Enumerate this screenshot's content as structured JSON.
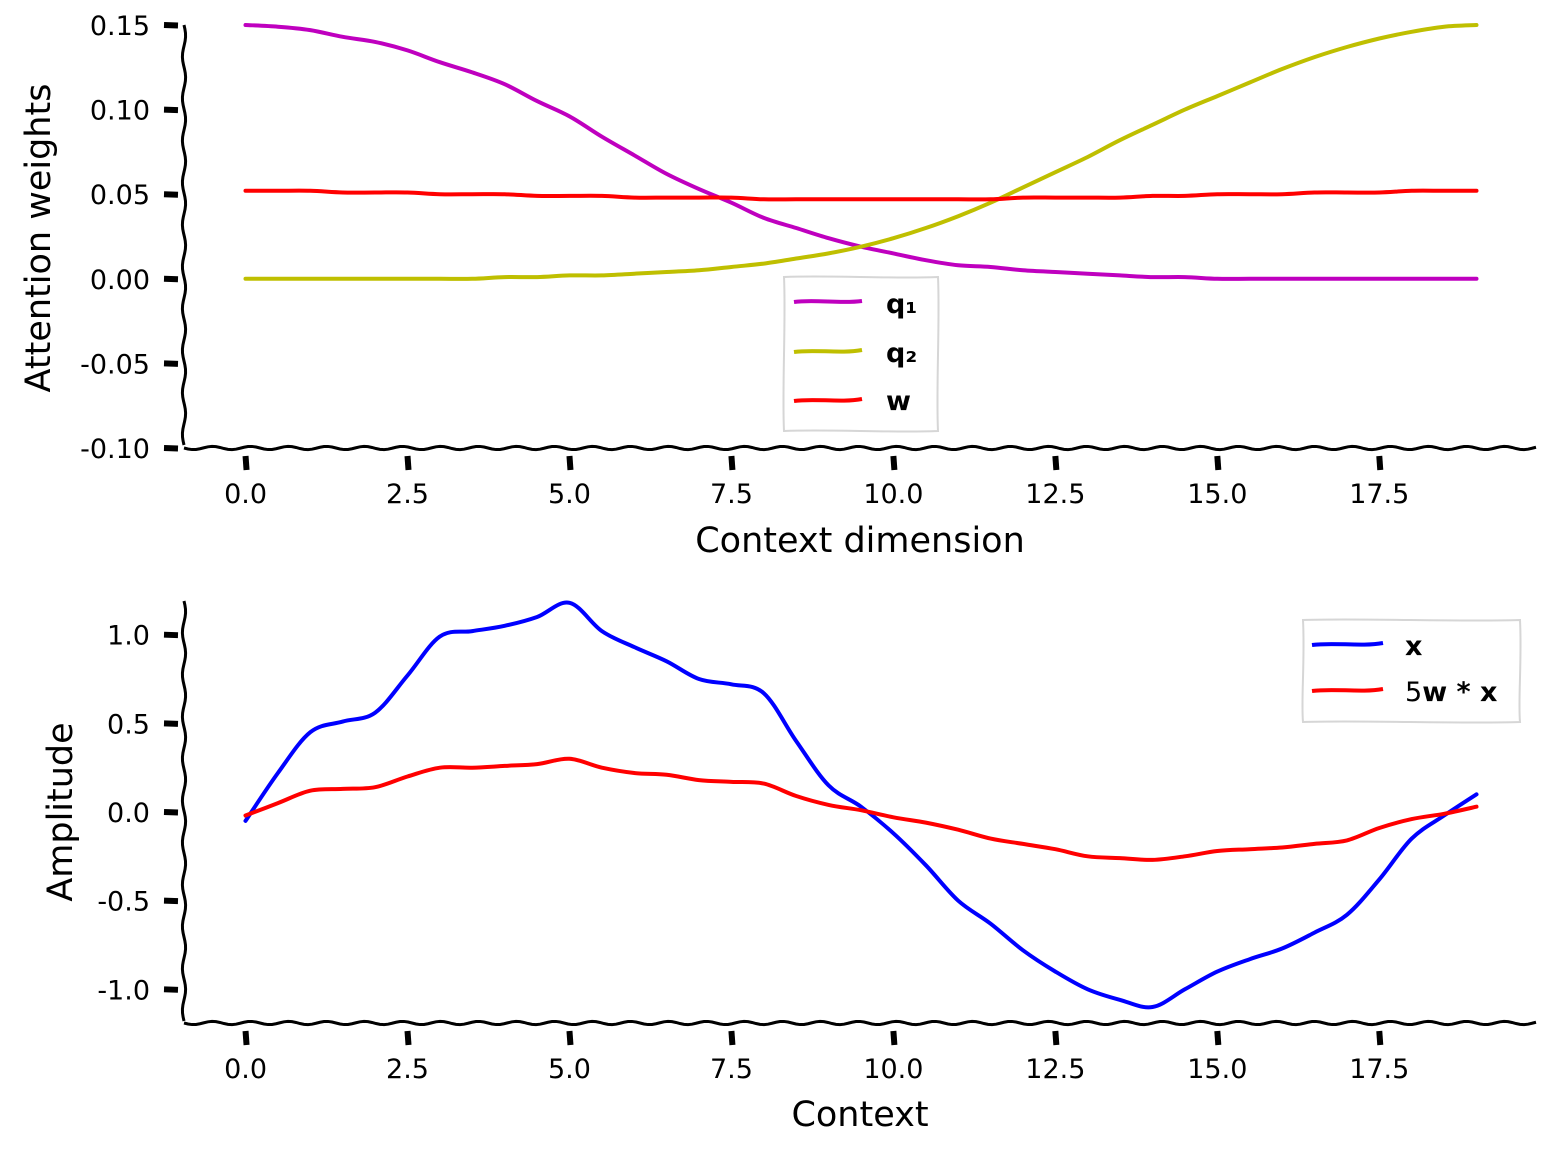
{
  "chart_data": [
    {
      "type": "line",
      "xlabel": "Context dimension",
      "ylabel": "Attention weights",
      "xlim": [
        -0.95,
        19.95
      ],
      "ylim": [
        -0.1,
        0.15
      ],
      "xticks": [
        0.0,
        2.5,
        5.0,
        7.5,
        10.0,
        12.5,
        15.0,
        17.5
      ],
      "xtick_labels": [
        "0.0",
        "2.5",
        "5.0",
        "7.5",
        "10.0",
        "12.5",
        "15.0",
        "17.5"
      ],
      "yticks": [
        0.15,
        0.1,
        0.05,
        0.0,
        -0.05,
        -0.1
      ],
      "ytick_labels": [
        "0.15",
        "0.10",
        "0.05",
        "0.00",
        "-0.05",
        "-0.10"
      ],
      "legend_position": "lower-center",
      "x": [
        0,
        0.5,
        1,
        1.5,
        2,
        2.5,
        3,
        3.5,
        4,
        4.5,
        5,
        5.5,
        6,
        6.5,
        7,
        7.5,
        8,
        8.5,
        9,
        9.5,
        10,
        10.5,
        11,
        11.5,
        12,
        12.5,
        13,
        13.5,
        14,
        14.5,
        15,
        15.5,
        16,
        16.5,
        17,
        17.5,
        18,
        18.5,
        19
      ],
      "series": [
        {
          "name": "q₁",
          "color": "#bf00bf",
          "values": [
            0.15,
            0.149,
            0.147,
            0.143,
            0.14,
            0.135,
            0.128,
            0.122,
            0.115,
            0.105,
            0.096,
            0.084,
            0.073,
            0.062,
            0.053,
            0.045,
            0.036,
            0.03,
            0.024,
            0.019,
            0.015,
            0.011,
            0.008,
            0.007,
            0.005,
            0.004,
            0.003,
            0.002,
            0.001,
            0.001,
            0.0,
            0.0,
            0.0,
            0.0,
            0.0,
            0.0,
            0.0,
            0.0,
            0.0
          ]
        },
        {
          "name": "q₂",
          "color": "#bfbf00",
          "values": [
            0.0,
            0.0,
            0.0,
            0.0,
            0.0,
            0.0,
            0.0,
            0.0,
            0.001,
            0.001,
            0.002,
            0.002,
            0.003,
            0.004,
            0.005,
            0.007,
            0.009,
            0.012,
            0.015,
            0.019,
            0.024,
            0.03,
            0.037,
            0.045,
            0.054,
            0.063,
            0.072,
            0.082,
            0.091,
            0.1,
            0.108,
            0.116,
            0.124,
            0.131,
            0.137,
            0.142,
            0.146,
            0.149,
            0.15
          ]
        },
        {
          "name": "w",
          "color": "#ff0000",
          "values": [
            0.052,
            0.052,
            0.052,
            0.051,
            0.051,
            0.051,
            0.05,
            0.05,
            0.05,
            0.049,
            0.049,
            0.049,
            0.048,
            0.048,
            0.048,
            0.048,
            0.047,
            0.047,
            0.047,
            0.047,
            0.047,
            0.047,
            0.047,
            0.047,
            0.048,
            0.048,
            0.048,
            0.048,
            0.049,
            0.049,
            0.05,
            0.05,
            0.05,
            0.051,
            0.051,
            0.051,
            0.052,
            0.052,
            0.052
          ]
        }
      ]
    },
    {
      "type": "line",
      "xlabel": "Context",
      "ylabel": "Amplitude",
      "xlim": [
        -0.95,
        19.95
      ],
      "ylim": [
        -1.19,
        1.19
      ],
      "xticks": [
        0.0,
        2.5,
        5.0,
        7.5,
        10.0,
        12.5,
        15.0,
        17.5
      ],
      "xtick_labels": [
        "0.0",
        "2.5",
        "5.0",
        "7.5",
        "10.0",
        "12.5",
        "15.0",
        "17.5"
      ],
      "yticks": [
        1.0,
        0.5,
        0.0,
        -0.5,
        -1.0
      ],
      "ytick_labels": [
        "1.0",
        "0.5",
        "0.0",
        "-0.5",
        "-1.0"
      ],
      "legend_position": "upper-right",
      "x": [
        0,
        0.5,
        1,
        1.5,
        2,
        2.5,
        3,
        3.5,
        4,
        4.5,
        5,
        5.5,
        6,
        6.5,
        7,
        7.5,
        8,
        8.5,
        9,
        9.5,
        10,
        10.5,
        11,
        11.5,
        12,
        12.5,
        13,
        13.5,
        14,
        14.5,
        15,
        15.5,
        16,
        16.5,
        17,
        17.5,
        18,
        18.5,
        19
      ],
      "series": [
        {
          "name": "x",
          "label_main": "x",
          "label_rest": "",
          "color": "#0000ff",
          "values": [
            -0.05,
            0.22,
            0.45,
            0.51,
            0.56,
            0.77,
            0.99,
            1.02,
            1.05,
            1.1,
            1.18,
            1.02,
            0.93,
            0.85,
            0.75,
            0.72,
            0.67,
            0.4,
            0.15,
            0.03,
            -0.12,
            -0.3,
            -0.5,
            -0.63,
            -0.78,
            -0.9,
            -1.0,
            -1.06,
            -1.1,
            -1.0,
            -0.9,
            -0.83,
            -0.77,
            -0.68,
            -0.58,
            -0.38,
            -0.15,
            -0.02,
            0.1
          ]
        },
        {
          "name": "5w * x",
          "label_main": "5",
          "label_rest": "w * x",
          "color": "#ff0000",
          "values": [
            -0.02,
            0.05,
            0.12,
            0.13,
            0.14,
            0.2,
            0.25,
            0.25,
            0.26,
            0.27,
            0.3,
            0.25,
            0.22,
            0.21,
            0.18,
            0.17,
            0.16,
            0.09,
            0.04,
            0.01,
            -0.03,
            -0.06,
            -0.1,
            -0.15,
            -0.18,
            -0.21,
            -0.25,
            -0.26,
            -0.27,
            -0.25,
            -0.22,
            -0.21,
            -0.2,
            -0.18,
            -0.16,
            -0.09,
            -0.04,
            -0.01,
            0.03
          ]
        }
      ]
    }
  ]
}
